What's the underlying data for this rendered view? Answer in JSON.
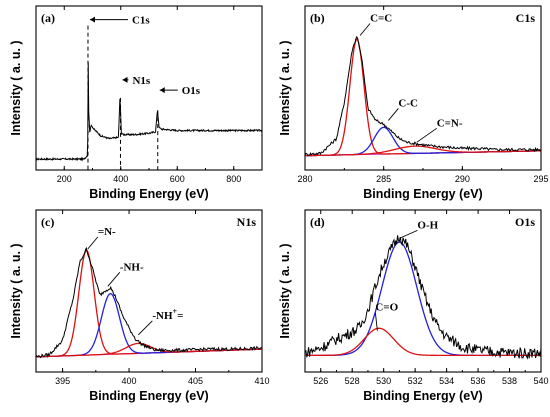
{
  "chart_data": [
    {
      "type": "line",
      "panel_label": "(a)",
      "xlabel": "Binding Energy (eV)",
      "ylabel": "Intensity  ( a. u. )",
      "xlim": [
        100,
        900
      ],
      "xticks": [
        200,
        400,
        600,
        800
      ],
      "x_reversed": false,
      "colors": {
        "data": "#000000",
        "marker": "#000000"
      },
      "series": [
        {
          "name": "",
          "x": [
            100,
            270,
            283,
            284,
            286,
            290,
            296,
            305,
            330,
            360,
            392,
            397,
            399,
            402,
            410,
            450,
            500,
            523,
            530,
            536,
            545,
            600,
            700,
            800,
            900
          ],
          "y": [
            0.02,
            0.02,
            0.05,
            1.0,
            0.4,
            0.22,
            0.27,
            0.24,
            0.19,
            0.17,
            0.18,
            0.47,
            0.4,
            0.21,
            0.2,
            0.2,
            0.21,
            0.22,
            0.38,
            0.25,
            0.24,
            0.23,
            0.23,
            0.23,
            0.23
          ]
        }
      ],
      "annotations": [
        {
          "text": "C1s",
          "x": 284,
          "y": 1.0
        },
        {
          "text": "N1s",
          "x": 399,
          "y": 0.47
        },
        {
          "text": "O1s",
          "x": 531,
          "y": 0.38
        }
      ]
    },
    {
      "type": "line",
      "panel_label": "(b)",
      "title": "C1s",
      "xlabel": "Binding Energy (eV)",
      "ylabel": "Intensity  ( a. u. )",
      "xlim": [
        280,
        295
      ],
      "xticks": [
        280,
        285,
        290,
        295
      ],
      "x_reversed": false,
      "colors": {
        "data": "#000000",
        "peak1": "#dd1111",
        "peak2": "#2222dd",
        "peak3": "#dd1111",
        "baseline": "#cc22cc"
      },
      "series": [
        {
          "name": "",
          "x": [
            280,
            281,
            282,
            282.5,
            283,
            283.3,
            283.6,
            284,
            284.5,
            285,
            285.5,
            286,
            286.5,
            287,
            288,
            289,
            290,
            291,
            292,
            293,
            294,
            295
          ],
          "y": [
            0.02,
            0.03,
            0.15,
            0.45,
            0.88,
            1.0,
            0.82,
            0.4,
            0.3,
            0.27,
            0.21,
            0.15,
            0.12,
            0.11,
            0.09,
            0.08,
            0.07,
            0.07,
            0.06,
            0.06,
            0.06,
            0.06
          ]
        }
      ],
      "components": [
        {
          "name": "",
          "center": 283.3,
          "fwhm": 1.05,
          "height": 0.95,
          "color": "#dd1111"
        },
        {
          "name": "",
          "center": 285.0,
          "fwhm": 1.4,
          "height": 0.22,
          "color": "#2222dd"
        },
        {
          "name": "",
          "center": 287.0,
          "fwhm": 3.0,
          "height": 0.06,
          "color": "#dd1111"
        }
      ],
      "baseline": {
        "y0": 0.01,
        "y1": 0.05,
        "color": "#cc22cc"
      },
      "annotations": [
        {
          "text": "C=C",
          "x": 283.5,
          "y": 1.0
        },
        {
          "text": "C-C",
          "x": 285.3,
          "y": 0.3
        },
        {
          "text": "C=N-",
          "x": 287.1,
          "y": 0.12
        }
      ]
    },
    {
      "type": "line",
      "panel_label": "(c)",
      "title": "N1s",
      "xlabel": "Binding Energy (eV)",
      "ylabel": "Intensity  ( a. u. )",
      "xlim": [
        393,
        410
      ],
      "xticks": [
        395,
        400,
        405,
        410
      ],
      "x_reversed": false,
      "colors": {
        "data": "#000000",
        "peak1": "#dd1111",
        "peak2": "#2222dd",
        "peak3": "#dd1111",
        "baseline": "#cc22cc"
      },
      "series": [
        {
          "name": "",
          "x": [
            393,
            394,
            395,
            395.8,
            396.3,
            396.8,
            397.3,
            397.8,
            398.2,
            398.6,
            399,
            399.5,
            400,
            400.5,
            401,
            402,
            403,
            404,
            406,
            408,
            410
          ],
          "y": [
            0.02,
            0.04,
            0.17,
            0.55,
            0.88,
            1.0,
            0.8,
            0.58,
            0.62,
            0.65,
            0.56,
            0.4,
            0.28,
            0.18,
            0.13,
            0.08,
            0.08,
            0.08,
            0.09,
            0.09,
            0.1
          ]
        }
      ],
      "components": [
        {
          "name": "",
          "center": 396.8,
          "fwhm": 1.35,
          "height": 0.95,
          "color": "#dd1111"
        },
        {
          "name": "",
          "center": 398.6,
          "fwhm": 1.6,
          "height": 0.55,
          "color": "#2222dd"
        },
        {
          "name": "",
          "center": 400.7,
          "fwhm": 2.2,
          "height": 0.09,
          "color": "#dd1111"
        }
      ],
      "baseline": {
        "y0": 0.02,
        "y1": 0.09,
        "color": "#cc22cc"
      },
      "annotations": [
        {
          "text": "=N-",
          "x": 396.9,
          "y": 1.0
        },
        {
          "text": "-NH-",
          "x": 398.4,
          "y": 0.66
        },
        {
          "text": "-NH",
          "sup": "+",
          "tail": "=",
          "x": 400.7,
          "y": 0.22
        }
      ]
    },
    {
      "type": "line",
      "panel_label": "(d)",
      "title": "O1s",
      "xlabel": "Binding Energy (eV)",
      "ylabel": "Intensity  ( a. u. )",
      "xlim": [
        525,
        540
      ],
      "xticks": [
        526,
        528,
        530,
        532,
        534,
        536,
        538,
        540
      ],
      "x_reversed": false,
      "colors": {
        "data": "#000000",
        "peak1": "#2222dd",
        "peak2": "#dd1111"
      },
      "series": [
        {
          "name": "",
          "x": [
            525,
            526,
            527,
            528,
            528.5,
            529,
            529.5,
            530,
            530.5,
            531,
            531.5,
            532,
            532.5,
            533,
            533.5,
            534,
            535,
            536,
            537,
            538,
            539,
            540
          ],
          "y": [
            0.05,
            0.09,
            0.16,
            0.22,
            0.26,
            0.4,
            0.6,
            0.78,
            0.9,
            1.0,
            0.92,
            0.75,
            0.55,
            0.38,
            0.25,
            0.18,
            0.1,
            0.07,
            0.06,
            0.05,
            0.05,
            0.05
          ]
        }
      ],
      "components": [
        {
          "name": "",
          "center": 531.0,
          "fwhm": 2.6,
          "height": 0.92,
          "color": "#2222dd"
        },
        {
          "name": "",
          "center": 529.7,
          "fwhm": 2.2,
          "height": 0.22,
          "color": "#dd1111"
        }
      ],
      "annotations": [
        {
          "text": "O-H",
          "x": 531.0,
          "y": 0.98
        },
        {
          "text": "C=O",
          "x": 529.6,
          "y": 0.23
        }
      ]
    }
  ]
}
